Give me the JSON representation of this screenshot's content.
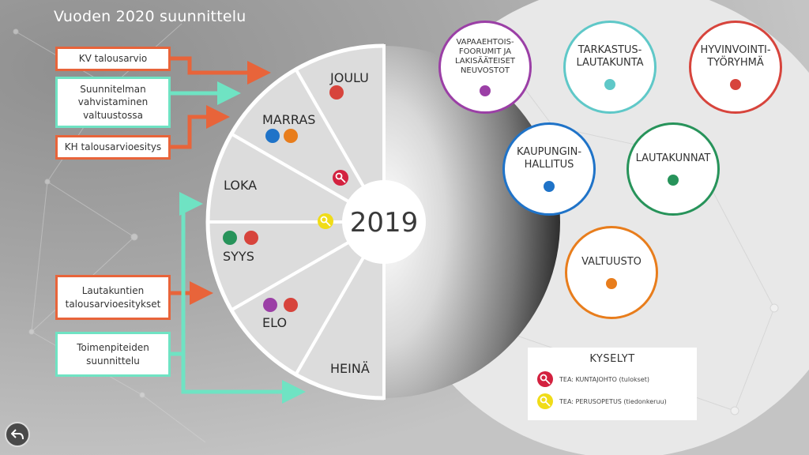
{
  "title": "Vuoden 2020 suunnittelu",
  "year": "2019",
  "months": {
    "joulu": "JOULU",
    "marras": "MARRAS",
    "loka": "LOKA",
    "syys": "SYYS",
    "elo": "ELO",
    "heina": "HEINÄ"
  },
  "process_boxes": {
    "kv": "KV talousarvio",
    "vahvistaminen": "Suunnitelman vahvistaminen valtuustossa",
    "kh": "KH talousarvioesitys",
    "lautakuntien": "Lautakuntien talousarvioesitykset",
    "toimenpiteet": "Toimenpiteiden suunnittelu"
  },
  "organs": {
    "vapaaehtois": "VAPAAEHTOIS-FOORUMIT JA LAKISÄÄTEISET NEUVOSTOT",
    "tarkastus": "TARKASTUS-LAUTAKUNTA",
    "hyvinvointi": "HYVINVOINTI-TYÖRYHMÄ",
    "kaupunginhallitus": "KAUPUNGIN-HALLITUS",
    "lautakunnat": "LAUTAKUNNAT",
    "valtuusto": "VALTUUSTO"
  },
  "legend": {
    "title": "KYSELYT",
    "item1": "TEA: KUNTAJOHTO (tulokset)",
    "item2": "TEA: PERUSOPETUS (tiedonkeruu)"
  },
  "colors": {
    "purple": "#9b3fa6",
    "teal": "#5fc8c8",
    "red": "#d7443c",
    "blue": "#1f73c8",
    "green": "#27935a",
    "orange": "#e87d1c",
    "arrow_orange": "#e8643a",
    "arrow_teal": "#6fe3c3",
    "key_red": "#d3213f",
    "key_yellow": "#f0dc18"
  },
  "icons": {
    "key": "key-icon",
    "back": "back-arrow-icon"
  }
}
